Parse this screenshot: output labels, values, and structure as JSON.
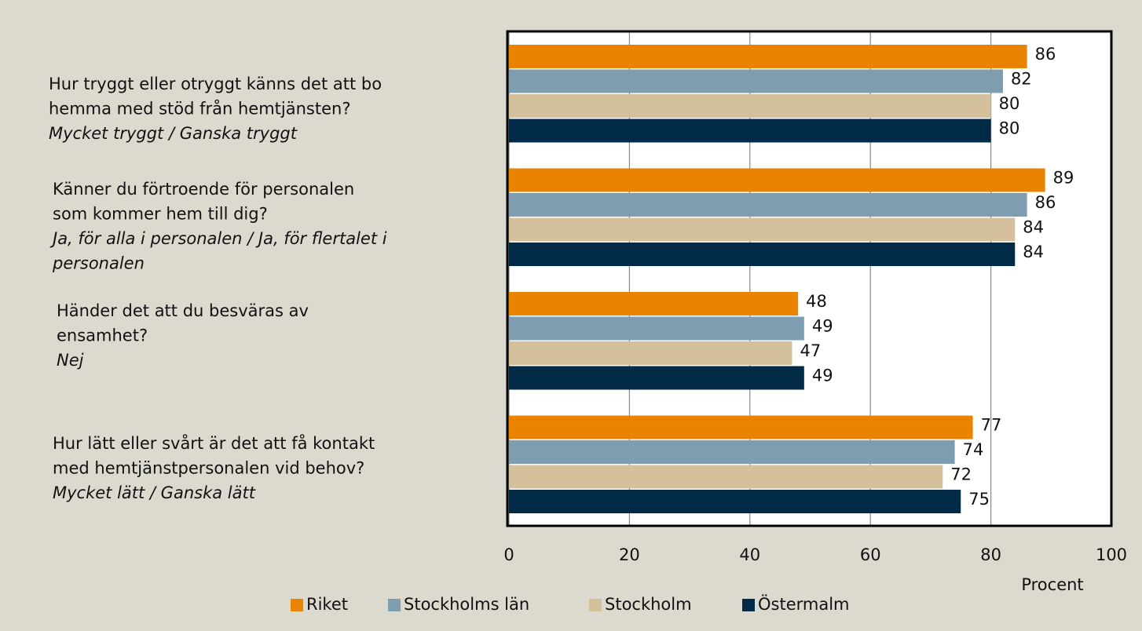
{
  "chart_data": {
    "type": "barh",
    "categories": [
      [
        "Hur tryggt eller otryggt känns det att bo",
        "hemma med stöd från hemtjänsten?"
      ],
      [
        "Känner du förtroende för personalen",
        "som kommer hem till dig?"
      ],
      [
        "Händer det att du besväras av",
        "ensamhet?"
      ],
      [
        "Hur lätt eller svårt är det att få kontakt",
        "med hemtjänstpersonalen vid behov?"
      ]
    ],
    "answers": [
      [
        "Mycket tryggt / Ganska tryggt"
      ],
      [
        "Ja, för alla i personalen / Ja, för flertalet i",
        "personalen"
      ],
      [
        "Nej"
      ],
      [
        "Mycket lätt / Ganska lätt"
      ]
    ],
    "series": [
      {
        "name": "Riket",
        "color": "#e98300",
        "values": [
          86,
          89,
          48,
          77
        ]
      },
      {
        "name": "Stockholms län",
        "color": "#7f9db0",
        "values": [
          82,
          86,
          49,
          74
        ]
      },
      {
        "name": "Stockholm",
        "color": "#d4c09a",
        "values": [
          80,
          84,
          47,
          72
        ]
      },
      {
        "name": "Östermalm",
        "color": "#002a45",
        "values": [
          80,
          84,
          49,
          75
        ]
      }
    ],
    "xlabel": "Procent",
    "xlim": [
      0,
      100
    ],
    "xticks": [
      0,
      20,
      40,
      60,
      80,
      100
    ],
    "grid": true,
    "legend": "bottom"
  }
}
